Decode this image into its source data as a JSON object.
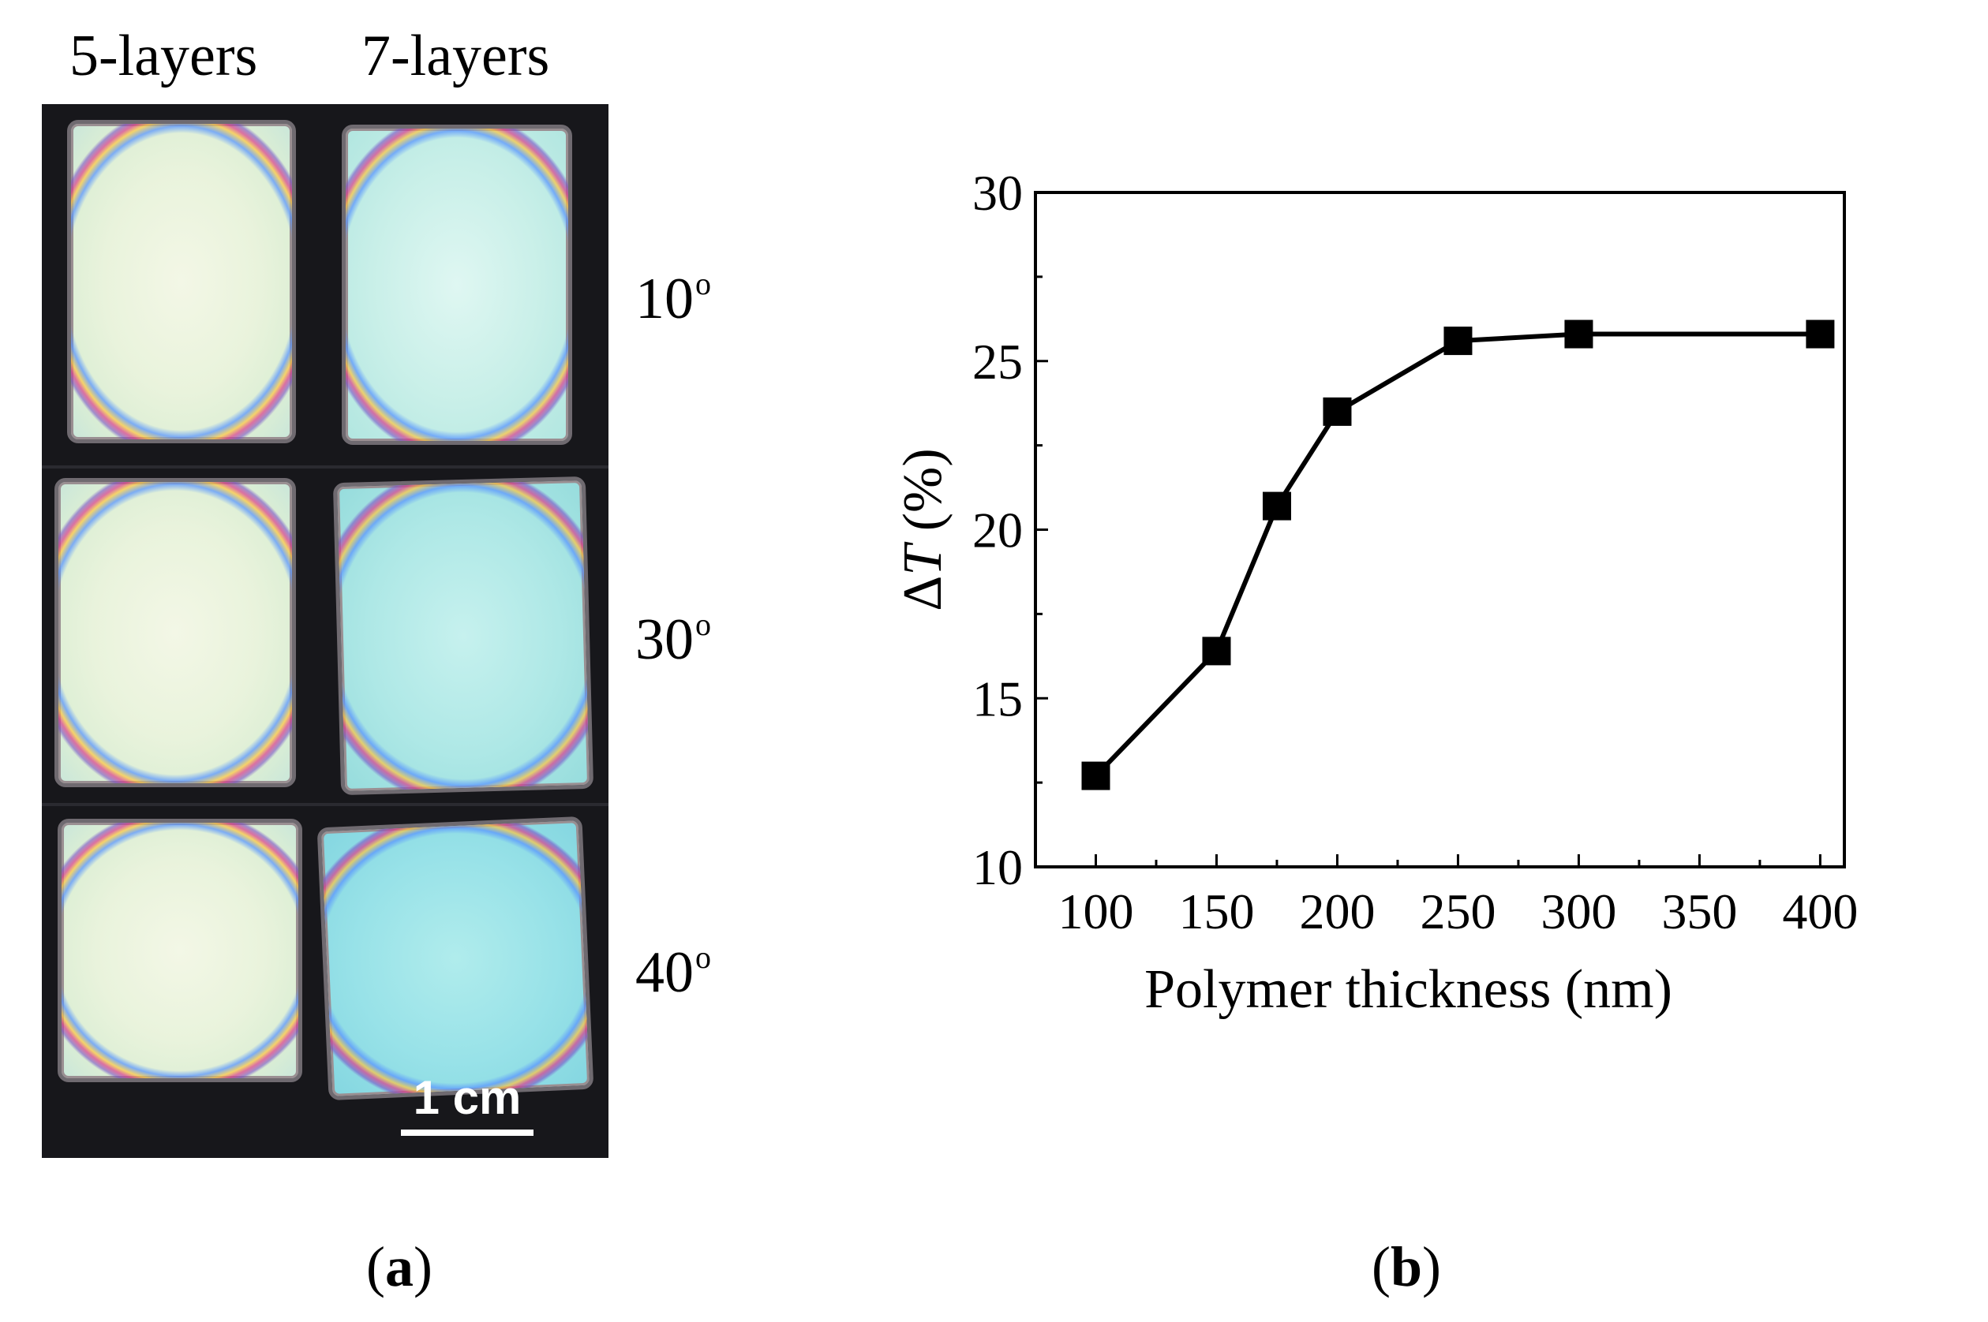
{
  "panel_a": {
    "columns": [
      "5-layers",
      "7-layers"
    ],
    "rows": [
      {
        "angle": "10",
        "unit": "o"
      },
      {
        "angle": "30",
        "unit": "o"
      },
      {
        "angle": "40",
        "unit": "o"
      }
    ],
    "scale_bar": "1 cm",
    "label": "a"
  },
  "panel_b": {
    "label": "b"
  },
  "chart_data": {
    "type": "line",
    "title": "",
    "xlabel": "Polymer thickness (nm)",
    "ylabel_prefix": "Δ",
    "ylabel_symbol": "T",
    "ylabel_suffix": " (%)",
    "x": [
      100,
      150,
      175,
      200,
      250,
      300,
      400
    ],
    "series": [
      {
        "values": [
          12.7,
          16.4,
          20.7,
          23.5,
          25.6,
          25.8,
          25.8
        ],
        "color": "#000000",
        "marker": "square"
      }
    ],
    "xlim": [
      75,
      410
    ],
    "ylim": [
      10,
      30
    ],
    "xticks": [
      100,
      150,
      200,
      250,
      300,
      350,
      400
    ],
    "yticks": [
      10,
      15,
      20,
      25,
      30
    ],
    "grid": false,
    "legend": "none"
  }
}
